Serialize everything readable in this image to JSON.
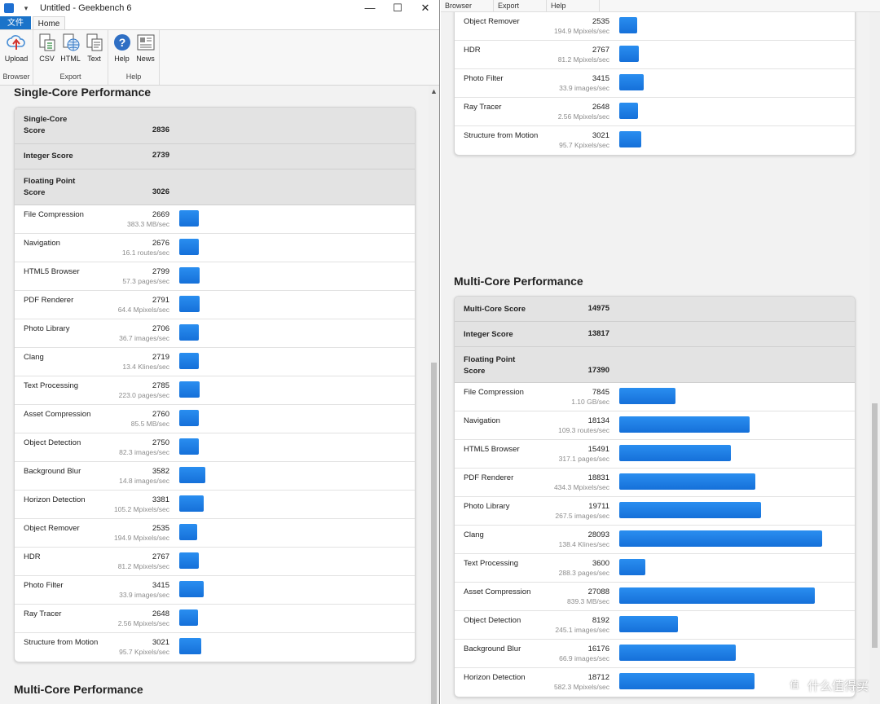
{
  "window": {
    "title": "Untitled - Geekbench 6",
    "quick_access": "▾",
    "controls": {
      "minimize": "—",
      "maximize": "☐",
      "close": "✕"
    }
  },
  "ribbon": {
    "tabs": {
      "file": "文件",
      "home": "Home"
    },
    "groups": {
      "browser": {
        "label": "Browser",
        "upload": "Upload"
      },
      "export": {
        "label": "Export",
        "csv": "CSV",
        "html": "HTML",
        "text": "Text"
      },
      "help": {
        "label": "Help",
        "help": "Help",
        "news": "News"
      }
    }
  },
  "right_menubar": [
    "Browser",
    "Export",
    "Help"
  ],
  "colors": {
    "accent": "#1a73c9",
    "bar": "#1e80e6",
    "summary_bg": "#e3e3e3"
  },
  "single_core": {
    "title": "Single-Core Performance",
    "score_label": "Single-Core Score",
    "score": "2836",
    "integer_label": "Integer Score",
    "integer": "2739",
    "fp_label": "Floating Point Score",
    "fp": "3026",
    "benchmarks": [
      {
        "name": "File Compression",
        "score": "2669",
        "rate": "383.3 MB/sec",
        "v": 2669
      },
      {
        "name": "Navigation",
        "score": "2676",
        "rate": "16.1 routes/sec",
        "v": 2676
      },
      {
        "name": "HTML5 Browser",
        "score": "2799",
        "rate": "57.3 pages/sec",
        "v": 2799
      },
      {
        "name": "PDF Renderer",
        "score": "2791",
        "rate": "64.4 Mpixels/sec",
        "v": 2791
      },
      {
        "name": "Photo Library",
        "score": "2706",
        "rate": "36.7 images/sec",
        "v": 2706
      },
      {
        "name": "Clang",
        "score": "2719",
        "rate": "13.4 Klines/sec",
        "v": 2719
      },
      {
        "name": "Text Processing",
        "score": "2785",
        "rate": "223.0 pages/sec",
        "v": 2785
      },
      {
        "name": "Asset Compression",
        "score": "2760",
        "rate": "85.5 MB/sec",
        "v": 2760
      },
      {
        "name": "Object Detection",
        "score": "2750",
        "rate": "82.3 images/sec",
        "v": 2750
      },
      {
        "name": "Background Blur",
        "score": "3582",
        "rate": "14.8 images/sec",
        "v": 3582
      },
      {
        "name": "Horizon Detection",
        "score": "3381",
        "rate": "105.2 Mpixels/sec",
        "v": 3381
      },
      {
        "name": "Object Remover",
        "score": "2535",
        "rate": "194.9 Mpixels/sec",
        "v": 2535
      },
      {
        "name": "HDR",
        "score": "2767",
        "rate": "81.2 Mpixels/sec",
        "v": 2767
      },
      {
        "name": "Photo Filter",
        "score": "3415",
        "rate": "33.9 images/sec",
        "v": 3415
      },
      {
        "name": "Ray Tracer",
        "score": "2648",
        "rate": "2.56 Mpixels/sec",
        "v": 2648
      },
      {
        "name": "Structure from Motion",
        "score": "3021",
        "rate": "95.7 Kpixels/sec",
        "v": 3021
      }
    ]
  },
  "multi_core": {
    "title": "Multi-Core Performance",
    "score_label": "Multi-Core Score",
    "score": "14975",
    "integer_label": "Integer Score",
    "integer": "13817",
    "fp_label": "Floating Point Score",
    "fp": "17390",
    "benchmarks": [
      {
        "name": "File Compression",
        "score": "7845",
        "rate": "1.10 GB/sec",
        "v": 7845
      },
      {
        "name": "Navigation",
        "score": "18134",
        "rate": "109.3 routes/sec",
        "v": 18134
      },
      {
        "name": "HTML5 Browser",
        "score": "15491",
        "rate": "317.1 pages/sec",
        "v": 15491
      },
      {
        "name": "PDF Renderer",
        "score": "18831",
        "rate": "434.3 Mpixels/sec",
        "v": 18831
      },
      {
        "name": "Photo Library",
        "score": "19711",
        "rate": "267.5 images/sec",
        "v": 19711
      },
      {
        "name": "Clang",
        "score": "28093",
        "rate": "138.4 Klines/sec",
        "v": 28093
      },
      {
        "name": "Text Processing",
        "score": "3600",
        "rate": "288.3 pages/sec",
        "v": 3600
      },
      {
        "name": "Asset Compression",
        "score": "27088",
        "rate": "839.3 MB/sec",
        "v": 27088
      },
      {
        "name": "Object Detection",
        "score": "8192",
        "rate": "245.1 images/sec",
        "v": 8192
      },
      {
        "name": "Background Blur",
        "score": "16176",
        "rate": "66.9 images/sec",
        "v": 16176
      },
      {
        "name": "Horizon Detection",
        "score": "18712",
        "rate": "582.3 Mpixels/sec",
        "v": 18712
      }
    ]
  },
  "watermark": "什么值得买"
}
